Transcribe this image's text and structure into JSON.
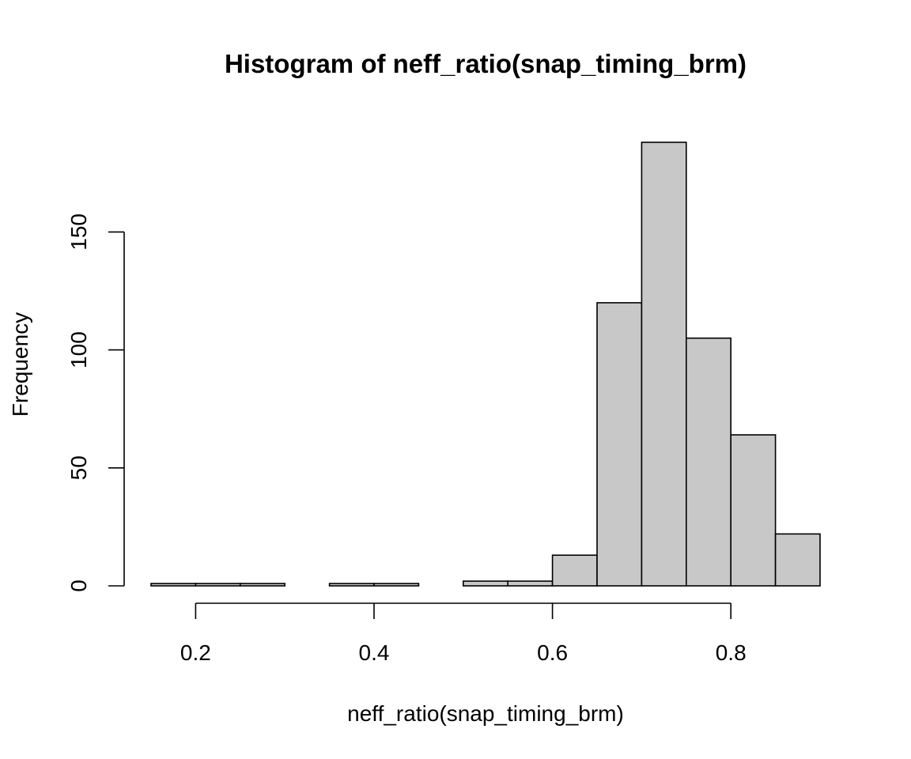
{
  "chart_data": {
    "type": "bar",
    "title": "Histogram of neff_ratio(snap_timing_brm)",
    "xlabel": "neff_ratio(snap_timing_brm)",
    "ylabel": "Frequency",
    "bins": [
      {
        "from": 0.15,
        "to": 0.2,
        "count": 1
      },
      {
        "from": 0.2,
        "to": 0.25,
        "count": 1
      },
      {
        "from": 0.25,
        "to": 0.3,
        "count": 1
      },
      {
        "from": 0.3,
        "to": 0.35,
        "count": 0
      },
      {
        "from": 0.35,
        "to": 0.4,
        "count": 1
      },
      {
        "from": 0.4,
        "to": 0.45,
        "count": 1
      },
      {
        "from": 0.45,
        "to": 0.5,
        "count": 0
      },
      {
        "from": 0.5,
        "to": 0.55,
        "count": 2
      },
      {
        "from": 0.55,
        "to": 0.6,
        "count": 2
      },
      {
        "from": 0.6,
        "to": 0.65,
        "count": 13
      },
      {
        "from": 0.65,
        "to": 0.7,
        "count": 120
      },
      {
        "from": 0.7,
        "to": 0.75,
        "count": 188
      },
      {
        "from": 0.75,
        "to": 0.8,
        "count": 105
      },
      {
        "from": 0.8,
        "to": 0.85,
        "count": 64
      },
      {
        "from": 0.85,
        "to": 0.9,
        "count": 22
      }
    ],
    "x_ticks": [
      "0.2",
      "0.4",
      "0.6",
      "0.8"
    ],
    "y_ticks": [
      "0",
      "50",
      "100",
      "150"
    ],
    "xlim": [
      0.15,
      0.9
    ],
    "ylim": [
      0,
      188
    ],
    "grid": false,
    "colors": {
      "bar_fill": "#c8c8c8",
      "bar_stroke": "#000000"
    }
  }
}
